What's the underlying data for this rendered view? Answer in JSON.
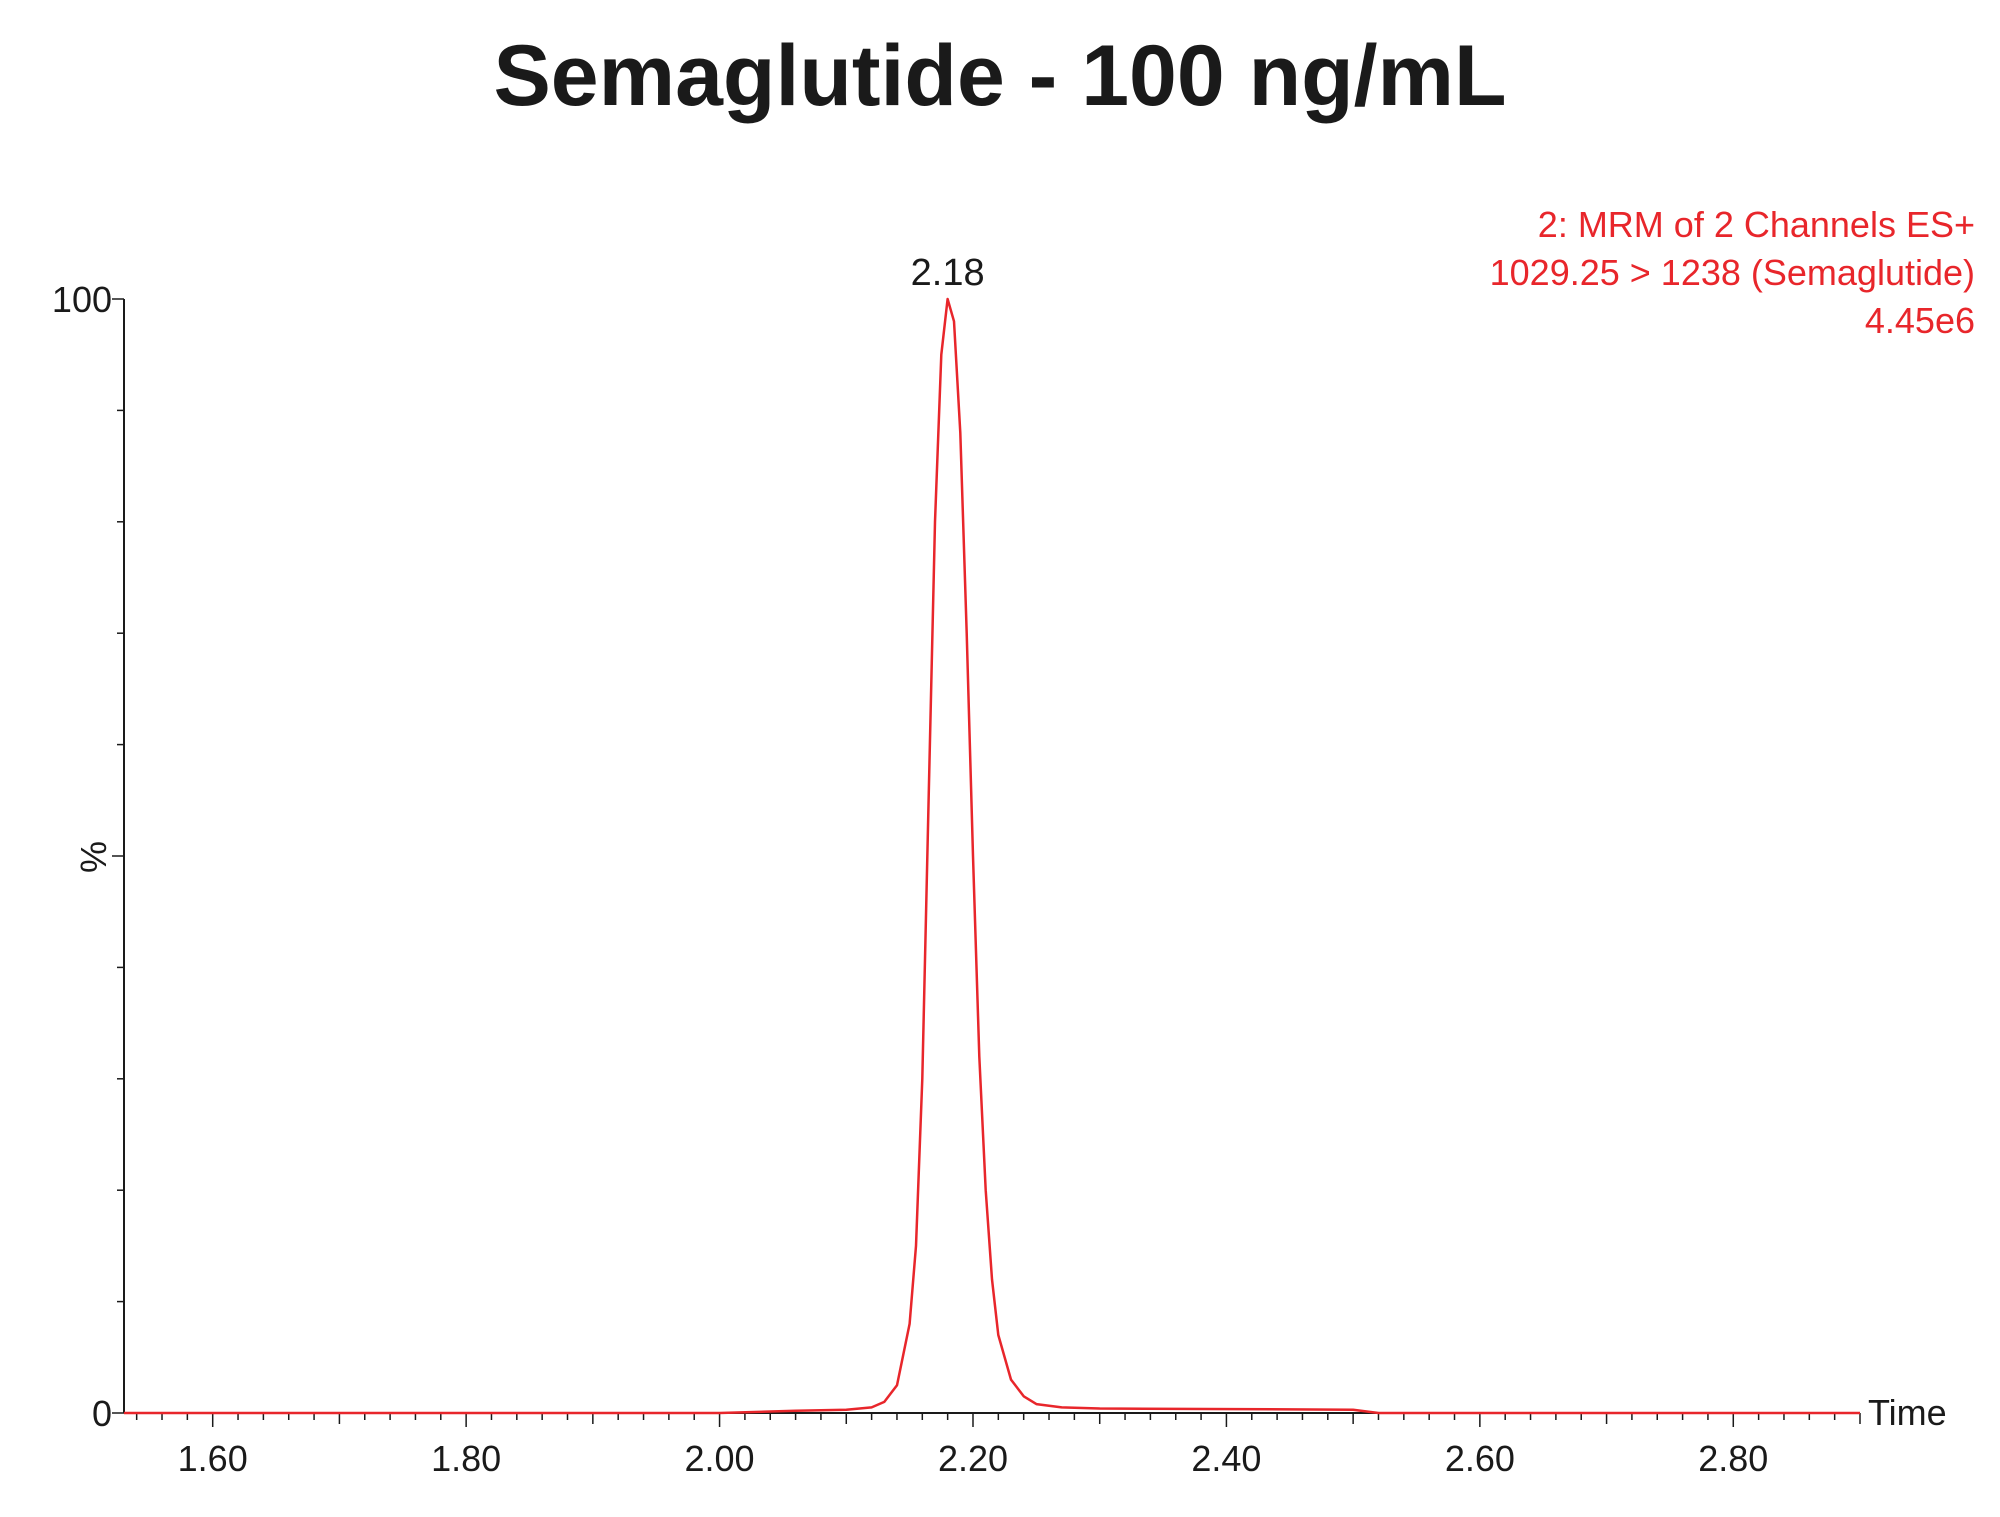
{
  "chart_data": {
    "type": "line",
    "title": "Semaglutide - 100 ng/mL",
    "xlabel": "Time",
    "ylabel": "%",
    "xlim": [
      1.53,
      2.9
    ],
    "ylim": [
      0,
      100
    ],
    "x_ticks": [
      "1.60",
      "1.80",
      "2.00",
      "2.20",
      "2.40",
      "2.60",
      "2.80"
    ],
    "y_ticks": [
      "0",
      "100"
    ],
    "annotations": [
      "2: MRM of 2 Channels ES+",
      "1029.25 > 1238 (Semaglutide)",
      "4.45e6"
    ],
    "peak_label": "2.18",
    "grid": false,
    "series": [
      {
        "line_color": "#e8262b",
        "x": [
          1.53,
          2.0,
          2.06,
          2.1,
          2.12,
          2.13,
          2.14,
          2.15,
          2.155,
          2.16,
          2.165,
          2.17,
          2.175,
          2.18,
          2.185,
          2.19,
          2.195,
          2.2,
          2.205,
          2.21,
          2.215,
          2.22,
          2.23,
          2.24,
          2.25,
          2.27,
          2.3,
          2.5,
          2.52,
          2.9
        ],
        "y": [
          0,
          0,
          0.2,
          0.3,
          0.5,
          1.0,
          2.5,
          8,
          15,
          30,
          55,
          80,
          95,
          100,
          98,
          88,
          70,
          50,
          32,
          20,
          12,
          7,
          3,
          1.5,
          0.8,
          0.5,
          0.4,
          0.3,
          0,
          0
        ]
      }
    ]
  }
}
